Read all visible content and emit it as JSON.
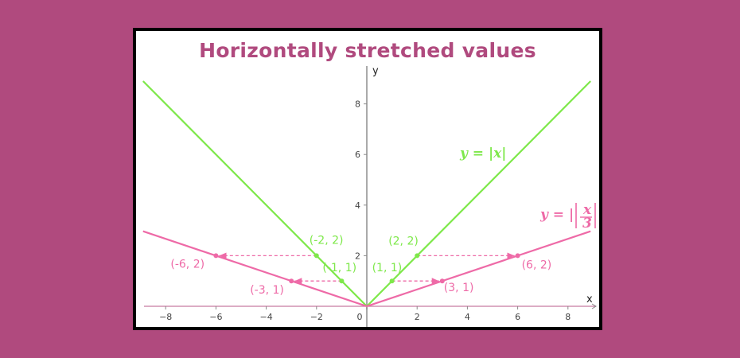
{
  "title": "Horizontally stretched values",
  "colors": {
    "background": "#b04a7e",
    "green": "#7ee84a",
    "pink": "#ee6aa7",
    "title": "#b04a7e"
  },
  "chart_data": {
    "type": "line",
    "title": "Horizontally stretched values",
    "xlabel": "x",
    "ylabel": "y",
    "xlim": [
      -8.9,
      8.9
    ],
    "ylim": [
      -0.1,
      9.3
    ],
    "x_ticks": [
      -8,
      -6,
      -4,
      -2,
      0,
      2,
      4,
      6,
      8
    ],
    "y_ticks": [
      2,
      4,
      6,
      8
    ],
    "grid": false,
    "series": [
      {
        "name": "y = |x|",
        "color": "#7ee84a",
        "points": [
          [
            -8.9,
            8.9
          ],
          [
            0,
            0
          ],
          [
            8.9,
            8.9
          ]
        ]
      },
      {
        "name": "y = |x/3|",
        "color": "#ee6aa7",
        "points": [
          [
            -8.9,
            2.9667
          ],
          [
            0,
            0
          ],
          [
            8.9,
            2.9667
          ]
        ]
      }
    ],
    "labels": {
      "green_equation": "y = |x|",
      "pink_equation_prefix": "y = |",
      "pink_equation_num": "x",
      "pink_equation_den": "3",
      "pink_equation_suffix": "|"
    },
    "points": [
      {
        "x": -2,
        "y": 2,
        "label": "(-2, 2)",
        "series": "green"
      },
      {
        "x": 2,
        "y": 2,
        "label": "(2, 2)",
        "series": "green"
      },
      {
        "x": -1,
        "y": 1,
        "label": "(-1, 1)",
        "series": "green"
      },
      {
        "x": 1,
        "y": 1,
        "label": "(1, 1)",
        "series": "green"
      },
      {
        "x": -6,
        "y": 2,
        "label": "(-6, 2)",
        "series": "pink"
      },
      {
        "x": 6,
        "y": 2,
        "label": "(6, 2)",
        "series": "pink"
      },
      {
        "x": -3,
        "y": 1,
        "label": "(-3, 1)",
        "series": "pink"
      },
      {
        "x": 3,
        "y": 1,
        "label": "(3, 1)",
        "series": "pink"
      }
    ],
    "arrows": [
      {
        "from": [
          -2,
          2
        ],
        "to": [
          -6,
          2
        ]
      },
      {
        "from": [
          2,
          2
        ],
        "to": [
          6,
          2
        ]
      },
      {
        "from": [
          -1,
          1
        ],
        "to": [
          -3,
          1
        ]
      },
      {
        "from": [
          1,
          1
        ],
        "to": [
          3,
          1
        ]
      }
    ]
  }
}
